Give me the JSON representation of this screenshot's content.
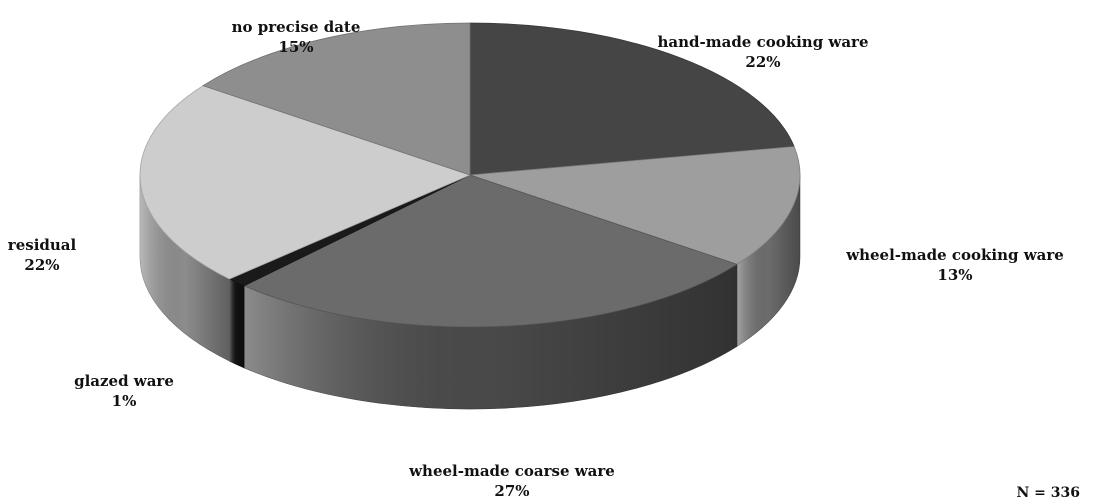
{
  "chart_data": {
    "type": "pie",
    "style": "3d",
    "slices": [
      {
        "label": "hand-made cooking ware",
        "value": 22,
        "value_label": "22%",
        "color": "#454545"
      },
      {
        "label": "wheel-made cooking ware",
        "value": 13,
        "value_label": "13%",
        "color": "#9e9e9e"
      },
      {
        "label": "wheel-made coarse ware",
        "value": 27,
        "value_label": "27%",
        "color": "#6b6b6b"
      },
      {
        "label": "glazed ware",
        "value": 1,
        "value_label": "1%",
        "color": "#1a1a1a"
      },
      {
        "label": "residual",
        "value": 22,
        "value_label": "22%",
        "color": "#cdcdcd"
      },
      {
        "label": "no precise date",
        "value": 15,
        "value_label": "15%",
        "color": "#8e8e8e"
      }
    ],
    "note": "N = 336"
  }
}
